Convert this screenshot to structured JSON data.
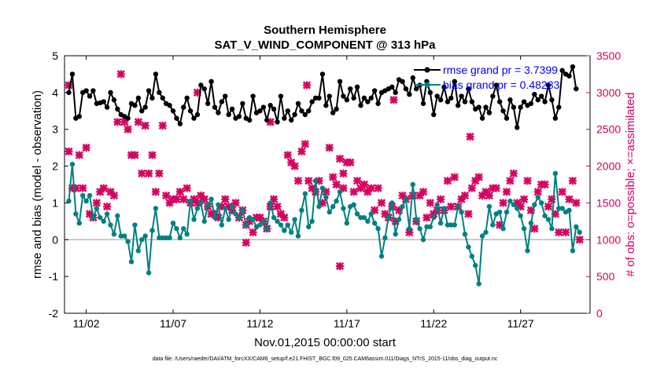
{
  "chart_data": {
    "type": "line",
    "title": "Southern Hemisphere",
    "subtitle": "SAT_V_WIND_COMPONENT @ 313 hPa",
    "xlabel": "Nov.01,2015 00:00:00 start",
    "ylabel_left": "rmse and bias (model - observation)",
    "ylabel_right": "# of obs: o=possible; ×=assimilated",
    "footnote": "data file: /Users/raeder/DAI/ATM_forcXX/CAM6_setup/f.e21.FHIST_BGC.f09_025.CAM6assim.011/Diags_NTrS_2015-11/obs_diag_output.nc",
    "x_ticks": [
      "11/02",
      "11/07",
      "11/12",
      "11/17",
      "11/22",
      "11/27"
    ],
    "x_tick_days": [
      2,
      7,
      12,
      17,
      22,
      27
    ],
    "xlim": [
      0.75,
      31.0
    ],
    "ylim_left": [
      -2,
      5
    ],
    "y_ticks_left": [
      "-2",
      "-1",
      "0",
      "1",
      "2",
      "3",
      "4",
      "5"
    ],
    "ylim_right": [
      0,
      3500
    ],
    "y_ticks_right": [
      "0",
      "500",
      "1000",
      "1500",
      "2000",
      "2500",
      "3000",
      "3500"
    ],
    "colors": {
      "rmse": "#000000",
      "bias": "#008080",
      "obs": "#d6005f",
      "zero": "#bbbbbb",
      "legend_text": "#0000ff"
    },
    "series": [
      {
        "name": "rmse grand pr = 3.7399",
        "values": [
          4.0,
          4.5,
          3.3,
          3.35,
          4.0,
          4.05,
          3.9,
          4.05,
          3.7,
          3.72,
          3.75,
          3.6,
          4.0,
          3.8,
          3.55,
          3.4,
          3.35,
          3.3,
          3.7,
          3.65,
          3.85,
          3.5,
          3.6,
          4.05,
          3.85,
          4.5,
          4.0,
          3.85,
          3.7,
          3.65,
          3.5,
          3.3,
          3.15,
          3.6,
          3.85,
          3.5,
          3.3,
          3.4,
          4.2,
          4.1,
          3.7,
          4.3,
          3.6,
          3.45,
          3.75,
          3.9,
          3.4,
          3.55,
          3.3,
          3.35,
          3.7,
          3.3,
          3.25,
          3.9,
          3.45,
          3.5,
          3.6,
          3.25,
          3.65,
          3.55,
          3.2,
          3.9,
          3.3,
          3.5,
          3.25,
          3.4,
          3.7,
          3.5,
          3.4,
          3.5,
          3.75,
          3.85,
          3.85,
          4.5,
          3.65,
          3.9,
          3.45,
          3.55,
          4.3,
          3.9,
          3.8,
          4.1,
          3.85,
          4.15,
          3.65,
          3.85,
          3.75,
          3.85,
          4.05,
          3.7,
          4.0,
          4.05,
          4.1,
          4.15,
          4.0,
          4.35,
          4.3,
          4.1,
          3.95,
          4.4,
          4.1,
          4.2,
          3.7,
          4.3,
          4.0,
          3.4,
          3.9,
          3.8,
          4.15,
          3.75,
          3.85,
          4.3,
          3.65,
          3.9,
          3.75,
          4.1,
          3.75,
          3.55,
          3.6,
          3.3,
          3.6,
          3.45,
          3.9,
          4.2,
          3.75,
          3.5,
          3.3,
          3.8,
          3.6,
          3.05,
          3.6,
          3.75,
          3.65,
          3.7,
          3.95,
          3.8,
          3.9,
          3.75,
          4.2,
          3.8,
          3.3,
          3.6,
          4.6,
          4.5,
          4.45,
          4.7,
          4.1
        ]
      },
      {
        "name": "bias grand pr = 0.48283",
        "values": [
          1.05,
          2.05,
          0.7,
          0.45,
          1.2,
          1.05,
          1.2,
          0.6,
          0.85,
          0.6,
          0.5,
          0.7,
          0.4,
          0.15,
          0.65,
          0.1,
          0.1,
          -0.05,
          -0.6,
          0.4,
          -0.3,
          0.0,
          0.1,
          -0.9,
          0.25,
          0.85,
          0.05,
          0.05,
          0.05,
          0.05,
          0.45,
          0.3,
          0.05,
          0.3,
          0.15,
          1.05,
          0.55,
          0.85,
          1.0,
          0.5,
          0.95,
          1.1,
          0.6,
          0.95,
          0.4,
          0.85,
          0.55,
          0.9,
          0.7,
          0.6,
          0.8,
          0.4,
          0.6,
          0.55,
          0.35,
          0.4,
          0.5,
          0.3,
          1.0,
          0.6,
          0.5,
          0.4,
          0.25,
          0.4,
          0.2,
          0.55,
          0.1,
          0.8,
          1.25,
          0.35,
          0.5,
          1.6,
          0.9,
          1.4,
          1.15,
          0.75,
          0.9,
          1.05,
          1.3,
          0.85,
          0.45,
          0.9,
          0.95,
          0.7,
          0.6,
          0.6,
          0.5,
          0.7,
          0.45,
          0.3,
          -0.45,
          0.05,
          0.6,
          1.0,
          0.15,
          0.55,
          0.9,
          1.1,
          0.3,
          1.5,
          0.55,
          0.3,
          0.0,
          0.35,
          0.35,
          0.6,
          0.95,
          0.45,
          0.85,
          0.4,
          0.4,
          0.4,
          0.9,
          0.75,
          0.15,
          -0.2,
          -0.45,
          -0.7,
          -1.2,
          0.1,
          0.2,
          0.9,
          0.4,
          0.7,
          0.75,
          0.3,
          0.75,
          1.05,
          0.95,
          0.85,
          0.65,
          0.3,
          -0.3,
          0.45,
          0.95,
          1.15,
          1.0,
          0.65,
          0.55,
          0.3,
          1.8,
          0.85,
          0.85,
          0.75,
          0.8,
          -0.3,
          0.35,
          0.2
        ]
      },
      {
        "name": "# of obs assimulated",
        "axis": "right",
        "values": [
          2200,
          1700,
          1700,
          2150,
          1700,
          2250,
          1350,
          1300,
          1500,
          1650,
          1700,
          1450,
          1650,
          1600,
          2600,
          3250,
          2600,
          2500,
          2150,
          2150,
          2600,
          1900,
          2550,
          1900,
          2150,
          1650,
          1900,
          2550,
          1600,
          1500,
          1550,
          1550,
          1650,
          1550,
          1700,
          1500,
          1550,
          1500,
          1600,
          1550,
          1450,
          1350,
          1350,
          1300,
          1450,
          1550,
          1450,
          1400,
          1500,
          1300,
          1400,
          1200,
          1250,
          1100,
          1300,
          1300,
          1250,
          1150,
          1450,
          1550,
          1450,
          1350,
          1300,
          2150,
          2050,
          2000,
          1800,
          2200,
          2300,
          1800,
          1700,
          1650,
          1800,
          1500,
          1650,
          2250,
          1850,
          1750,
          2100,
          1900,
          2050,
          2050,
          1650,
          1800,
          1700,
          1750,
          1650,
          1700,
          1400,
          1700,
          1500,
          1350,
          1300,
          1450,
          1250,
          1400,
          1600,
          1550,
          1100,
          1600,
          1250,
          1600,
          1650,
          1300,
          1500,
          1350,
          1400,
          1550,
          1400,
          1800,
          1450,
          1850,
          1450,
          1550,
          1600,
          1350,
          1700,
          1800,
          1850,
          1600,
          1650,
          1600,
          1700,
          1700,
          1200,
          1500,
          1650,
          1800,
          1900,
          1500,
          1450,
          1550,
          1800,
          1400,
          1150,
          1650,
          1750,
          1750,
          1450,
          1550,
          1350,
          1100,
          1650,
          1100,
          1550,
          1800,
          1500,
          1000
        ]
      }
    ],
    "extra_obs": [
      {
        "day": 1.0,
        "value": 3100
      },
      {
        "day": 8.4,
        "value": 3000
      },
      {
        "day": 11.2,
        "value": 960
      },
      {
        "day": 14.7,
        "value": 3100
      },
      {
        "day": 16.8,
        "value": 1700
      },
      {
        "day": 12.6,
        "value": 2600
      },
      {
        "day": 16.6,
        "value": 640
      },
      {
        "day": 19.7,
        "value": 2900
      },
      {
        "day": 24.1,
        "value": 2400
      }
    ],
    "legend": [
      "rmse grand pr = 3.7399",
      "bias grand pr = 0.48283"
    ],
    "legend_position": "top-right"
  }
}
